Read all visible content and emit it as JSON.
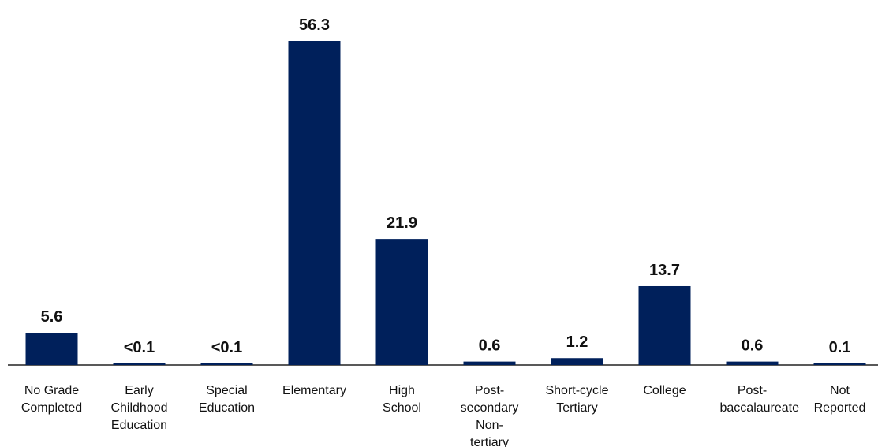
{
  "chart_data": {
    "type": "bar",
    "categories": [
      "No Grade Completed",
      "Early Childhood Education",
      "Special Education",
      "Elementary",
      "High School",
      "Post-secondary Non-tertiary",
      "Short-cycle Tertiary",
      "College",
      "Post-baccalaureate",
      "Not Reported"
    ],
    "values": [
      5.6,
      0.05,
      0.05,
      56.3,
      21.9,
      0.6,
      1.2,
      13.7,
      0.6,
      0.1
    ],
    "value_labels": [
      "5.6",
      "<0.1",
      "<0.1",
      "56.3",
      "21.9",
      "0.6",
      "1.2",
      "13.7",
      "0.6",
      "0.1"
    ],
    "color": "#00205b"
  }
}
